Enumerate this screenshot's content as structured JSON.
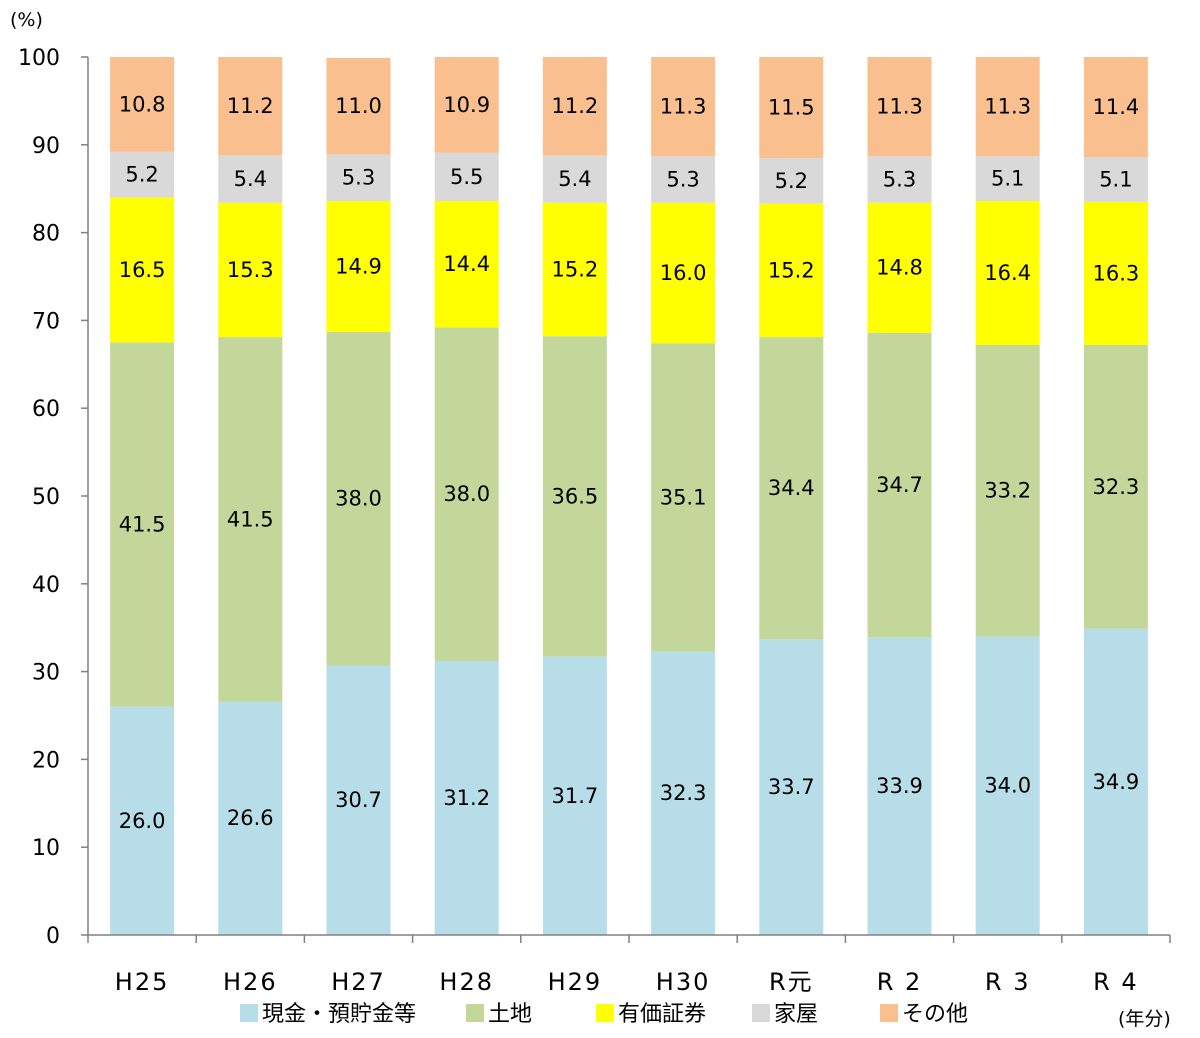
{
  "chart_data": {
    "type": "bar",
    "stacked": true,
    "categories": [
      "H25",
      "H26",
      "H27",
      "H28",
      "H29",
      "H30",
      "R元",
      "R2",
      "R3",
      "R4"
    ],
    "category_display": [
      "H25",
      "H26",
      "H27",
      "H28",
      "H29",
      "H30",
      "R元",
      "R 2",
      "R 3",
      "R 4"
    ],
    "series": [
      {
        "name": "現金・預貯金等",
        "color": "#B7DDE8",
        "values": [
          26.0,
          26.6,
          30.7,
          31.2,
          31.7,
          32.3,
          33.7,
          33.9,
          34.0,
          34.9
        ]
      },
      {
        "name": "土地",
        "color": "#C4D79B",
        "values": [
          41.5,
          41.5,
          38.0,
          38.0,
          36.5,
          35.1,
          34.4,
          34.7,
          33.2,
          32.3
        ]
      },
      {
        "name": "有価証券",
        "color": "#FFFF00",
        "values": [
          16.5,
          15.3,
          14.9,
          14.4,
          15.2,
          16.0,
          15.2,
          14.8,
          16.4,
          16.3
        ]
      },
      {
        "name": "家屋",
        "color": "#D9D9D9",
        "values": [
          5.2,
          5.4,
          5.3,
          5.5,
          5.4,
          5.3,
          5.2,
          5.3,
          5.1,
          5.1
        ]
      },
      {
        "name": "その他",
        "color": "#FABF8F",
        "values": [
          10.8,
          11.2,
          11.0,
          10.9,
          11.2,
          11.3,
          11.5,
          11.3,
          11.3,
          11.4
        ]
      }
    ],
    "ylim": [
      0,
      100
    ],
    "yticks": [
      0,
      10,
      20,
      30,
      40,
      50,
      60,
      70,
      80,
      90,
      100
    ],
    "y_unit": "(%)",
    "x_unit": "(年分)",
    "legend_position": "bottom",
    "grid": false
  }
}
